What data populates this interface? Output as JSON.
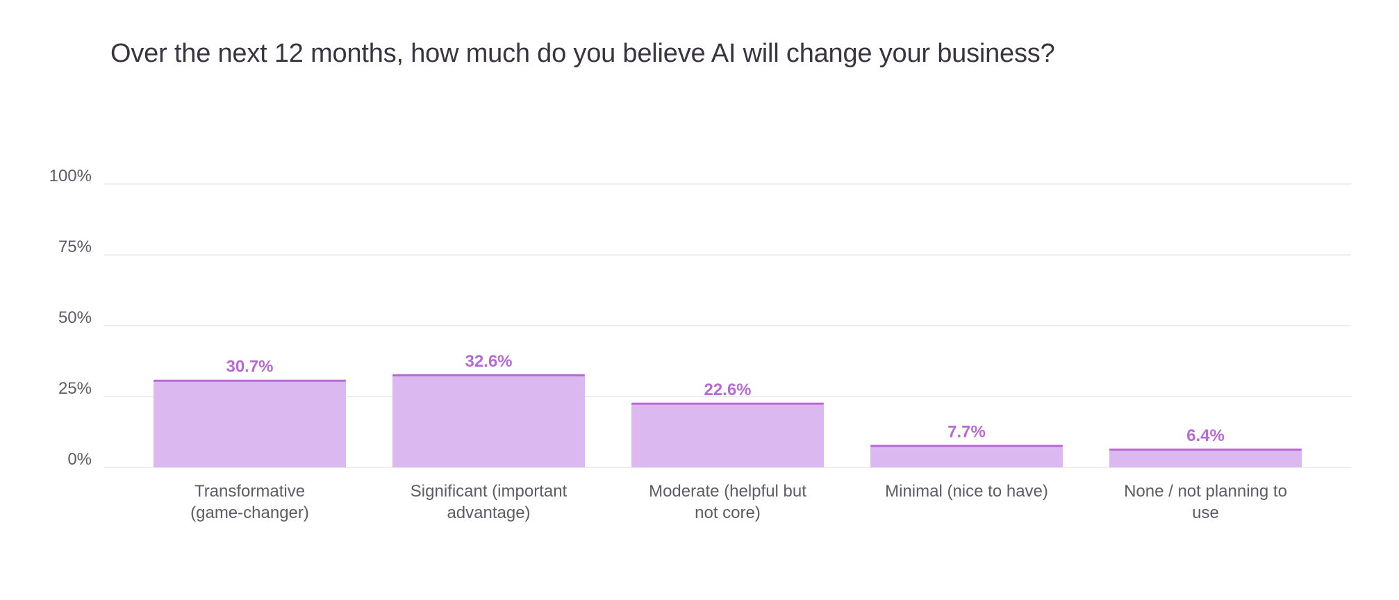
{
  "chart_data": {
    "type": "bar",
    "title": "Over the next 12 months, how much do you believe AI will change your business?",
    "xlabel": "",
    "ylabel": "",
    "categories": [
      [
        "Transformative",
        "(game-changer)"
      ],
      [
        "Significant (important",
        "advantage)"
      ],
      [
        "Moderate (helpful but",
        "not core)"
      ],
      [
        "Minimal (nice to have)"
      ],
      [
        "None / not planning to",
        "use"
      ]
    ],
    "values": [
      30.7,
      32.6,
      22.6,
      7.7,
      6.4
    ],
    "data_labels": [
      "30.7%",
      "32.6%",
      "22.6%",
      "7.7%",
      "6.4%"
    ],
    "ylim": [
      0,
      100
    ],
    "yticks": [
      0,
      25,
      50,
      75,
      100
    ],
    "ytick_labels": [
      "0%",
      "25%",
      "50%",
      "75%",
      "100%"
    ],
    "grid": true,
    "colors": {
      "bar_fill": "#dcb8f0",
      "bar_top": "#b868d8",
      "label": "#b66ad6",
      "grid": "#ececee",
      "text": "#5f5a66",
      "title": "#3a3340"
    }
  }
}
